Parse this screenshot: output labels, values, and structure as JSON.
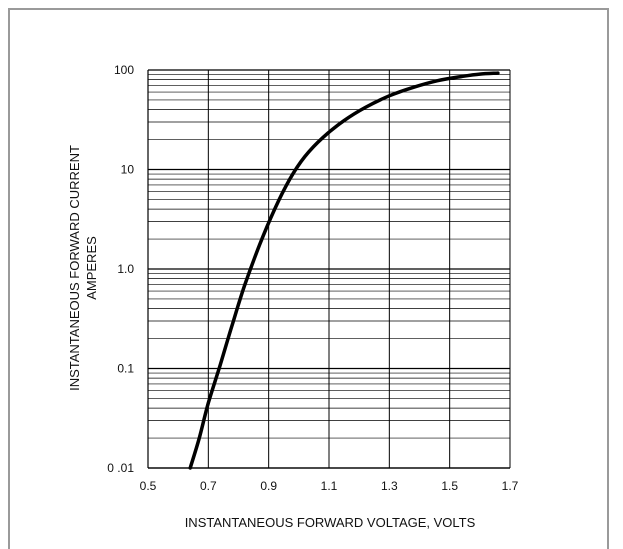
{
  "chart_data": {
    "type": "line",
    "title": "",
    "xlabel": "INSTANTANEOUS FORWARD VOLTAGE, VOLTS",
    "ylabel_line1": "INSTANTANEOUS FORWARD CURRENT",
    "ylabel_line2": "AMPERES",
    "xlim": [
      0.5,
      1.7
    ],
    "ylim": [
      0.01,
      100
    ],
    "yscale": "log",
    "grid": true,
    "x_ticks": [
      0.5,
      0.7,
      0.9,
      1.1,
      1.3,
      1.5,
      1.7
    ],
    "x_tick_labels": [
      "0.5",
      "0.7",
      "0.9",
      "1.1",
      "1.3",
      "1.5",
      "1.7"
    ],
    "y_ticks": [
      0.01,
      0.1,
      1.0,
      10,
      100
    ],
    "y_tick_labels": [
      "0 .01",
      "0.1",
      "1.0",
      "10",
      "100"
    ],
    "series": [
      {
        "color": "#000000",
        "x": [
          0.64,
          0.67,
          0.7,
          0.74,
          0.78,
          0.82,
          0.87,
          0.92,
          0.97,
          1.02,
          1.08,
          1.15,
          1.22,
          1.3,
          1.38,
          1.46,
          1.54,
          1.6,
          1.66
        ],
        "y": [
          0.01,
          0.02,
          0.045,
          0.11,
          0.28,
          0.68,
          1.75,
          4.0,
          8.0,
          13.5,
          21.0,
          31.0,
          42.0,
          55.0,
          67.0,
          78.0,
          86.0,
          91.0,
          93.0
        ]
      }
    ]
  }
}
